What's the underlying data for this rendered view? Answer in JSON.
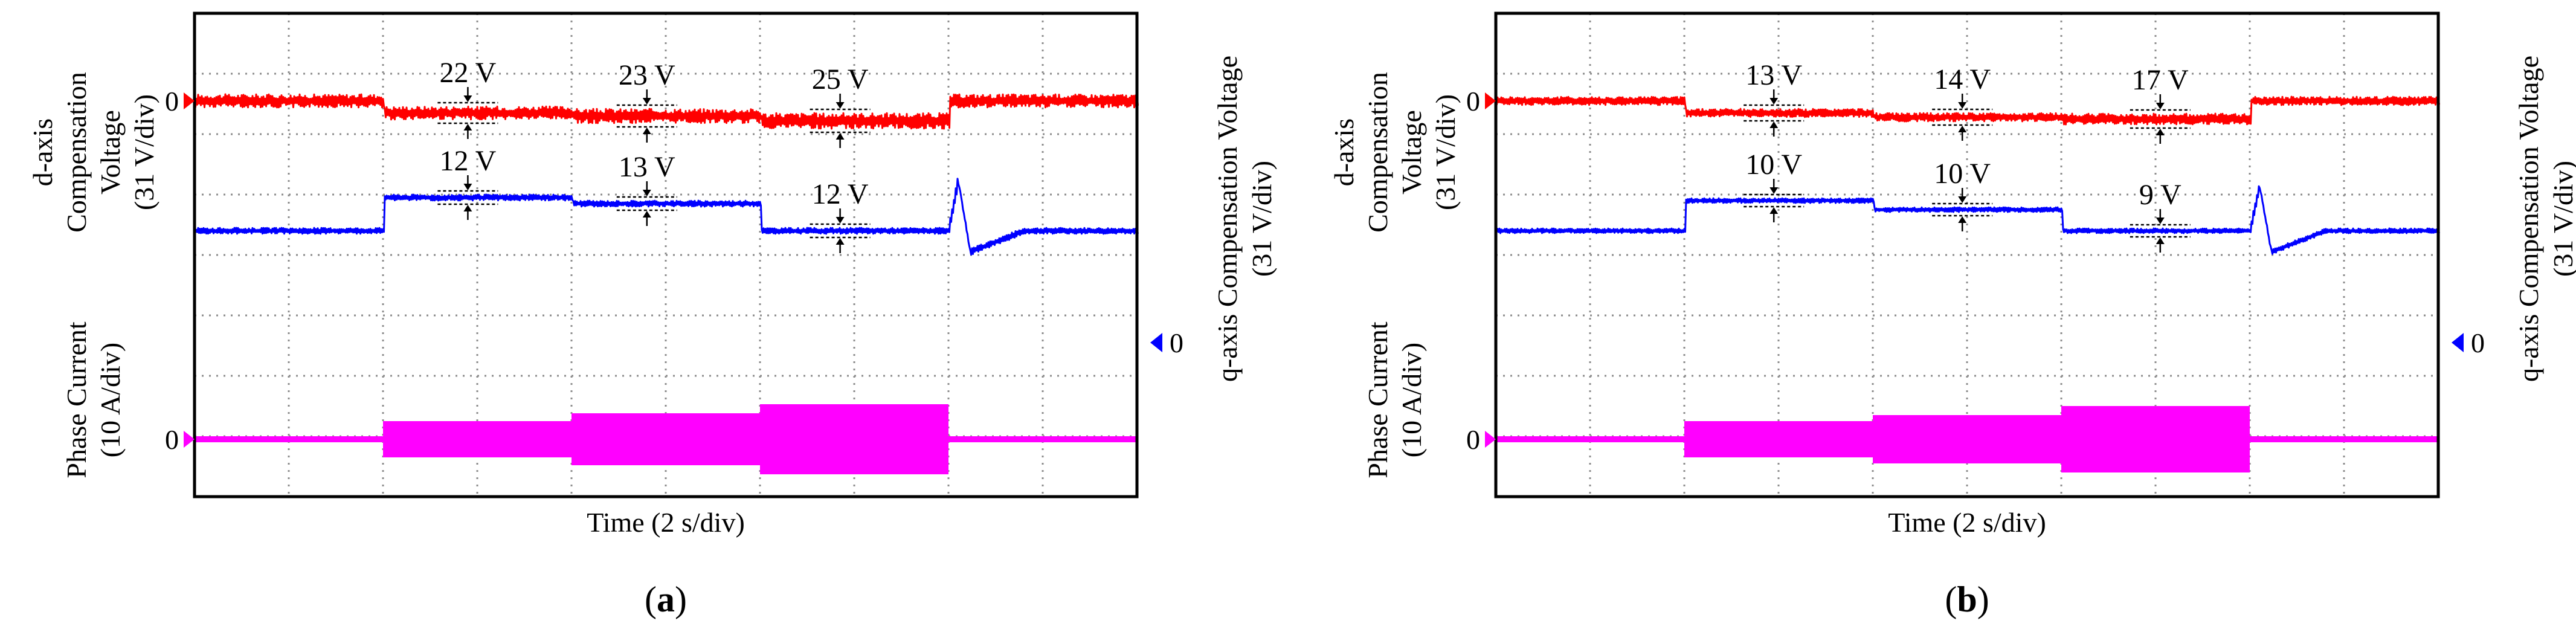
{
  "colors": {
    "d_axis": "#ff0000",
    "q_axis": "#0000ff",
    "phase_current": "#ff00ff",
    "grid": "#8c8c8c",
    "frame": "#000000"
  },
  "chart_data": [
    {
      "type": "line",
      "panel_label": "a",
      "xlabel": "Time (2 s/div)",
      "left_axis_labels": [
        "d-axis",
        "Compensation",
        "Voltage",
        "(31 V/div)"
      ],
      "current_axis_labels": [
        "Phase Current",
        "(10 A/div)"
      ],
      "right_axis_labels": [
        "q-axis Compensation Voltage",
        "(31 V/div)"
      ],
      "grid": {
        "x_divisions": 10,
        "y_divisions": 8
      },
      "xlim": [
        0,
        20
      ],
      "ylim": [
        0,
        8
      ],
      "zero_markers": {
        "d_axis": {
          "label": "0",
          "level": 6.55,
          "side": "left",
          "color": "#ff0000"
        },
        "q_axis": {
          "label": "0",
          "level": 2.55,
          "side": "right",
          "color": "#0000ff"
        },
        "phase_current": {
          "label": "0",
          "level": 0.95,
          "side": "left",
          "color": "#ff00ff"
        }
      },
      "series": [
        {
          "key": "d_axis",
          "label": "d-axis Compensation Voltage",
          "baseline": 6.55,
          "segments": [
            [
              0,
              4.0,
              6.55,
              0.11
            ],
            [
              4.0,
              8.0,
              6.35,
              0.11
            ],
            [
              8.0,
              12.0,
              6.3,
              0.12
            ],
            [
              12.0,
              16.0,
              6.22,
              0.13
            ],
            [
              16.0,
              20.0,
              6.55,
              0.11
            ]
          ],
          "ripple_labels": [
            {
              "text": "22 V",
              "x": 5.8
            },
            {
              "text": "23 V",
              "x": 9.6
            },
            {
              "text": "25 V",
              "x": 13.7
            }
          ]
        },
        {
          "key": "q_axis",
          "label": "q-axis Compensation Voltage",
          "baseline": 4.4,
          "segments": [
            [
              0,
              4.0,
              4.4,
              0.05
            ],
            [
              4.0,
              8.0,
              4.95,
              0.05
            ],
            [
              8.0,
              12.0,
              4.85,
              0.05
            ],
            [
              12.0,
              16.2,
              4.4,
              0.05
            ],
            [
              16.2,
              20.0,
              4.4,
              0.05
            ]
          ],
          "transient": {
            "x": 16.2,
            "peak": 5.25,
            "dip": 4.05
          },
          "ripple_labels": [
            {
              "text": "12 V",
              "x": 5.8
            },
            {
              "text": "13 V",
              "x": 9.6
            },
            {
              "text": "12 V",
              "x": 13.7
            }
          ]
        },
        {
          "key": "phase_current",
          "label": "Phase Current",
          "baseline": 0.95,
          "segments": [
            [
              0,
              4.0,
              0.95,
              0.05
            ],
            [
              4.0,
              8.0,
              0.95,
              0.3
            ],
            [
              8.0,
              12.0,
              0.95,
              0.43
            ],
            [
              12.0,
              16.0,
              0.95,
              0.58
            ],
            [
              16.0,
              20.0,
              0.95,
              0.05
            ]
          ]
        }
      ]
    },
    {
      "type": "line",
      "panel_label": "b",
      "xlabel": "Time (2 s/div)",
      "left_axis_labels": [
        "d-axis",
        "Compensation",
        "Voltage",
        "(31 V/div)"
      ],
      "current_axis_labels": [
        "Phase Current",
        "(10 A/div)"
      ],
      "right_axis_labels": [
        "q-axis Compensation Voltage",
        "(31 V/div)"
      ],
      "grid": {
        "x_divisions": 10,
        "y_divisions": 8
      },
      "xlim": [
        0,
        20
      ],
      "ylim": [
        0,
        8
      ],
      "zero_markers": {
        "d_axis": {
          "label": "0",
          "level": 6.55,
          "side": "left",
          "color": "#ff0000"
        },
        "q_axis": {
          "label": "0",
          "level": 2.55,
          "side": "right",
          "color": "#0000ff"
        },
        "phase_current": {
          "label": "0",
          "level": 0.95,
          "side": "left",
          "color": "#ff00ff"
        }
      },
      "series": [
        {
          "key": "d_axis",
          "label": "d-axis Compensation Voltage",
          "baseline": 6.55,
          "segments": [
            [
              0,
              4.0,
              6.55,
              0.07
            ],
            [
              4.0,
              8.0,
              6.35,
              0.07
            ],
            [
              8.0,
              12.0,
              6.28,
              0.07
            ],
            [
              12.0,
              16.0,
              6.25,
              0.09
            ],
            [
              16.0,
              20.0,
              6.55,
              0.07
            ]
          ],
          "ripple_labels": [
            {
              "text": "13 V",
              "x": 5.9
            },
            {
              "text": "14 V",
              "x": 9.9
            },
            {
              "text": "17 V",
              "x": 14.1
            }
          ]
        },
        {
          "key": "q_axis",
          "label": "q-axis Compensation Voltage",
          "baseline": 4.4,
          "segments": [
            [
              0,
              4.0,
              4.4,
              0.04
            ],
            [
              4.0,
              8.0,
              4.9,
              0.04
            ],
            [
              8.0,
              12.0,
              4.75,
              0.04
            ],
            [
              12.0,
              16.2,
              4.4,
              0.04
            ],
            [
              16.2,
              20.0,
              4.4,
              0.04
            ]
          ],
          "transient": {
            "x": 16.2,
            "peak": 5.15,
            "dip": 4.05
          },
          "ripple_labels": [
            {
              "text": "10 V",
              "x": 5.9
            },
            {
              "text": "10 V",
              "x": 9.9
            },
            {
              "text": "9 V",
              "x": 14.1
            }
          ]
        },
        {
          "key": "phase_current",
          "label": "Phase Current",
          "baseline": 0.95,
          "segments": [
            [
              0,
              4.0,
              0.95,
              0.05
            ],
            [
              4.0,
              8.0,
              0.95,
              0.3
            ],
            [
              8.0,
              12.0,
              0.95,
              0.4
            ],
            [
              12.0,
              16.0,
              0.95,
              0.55
            ],
            [
              16.0,
              20.0,
              0.95,
              0.05
            ]
          ]
        }
      ]
    }
  ]
}
